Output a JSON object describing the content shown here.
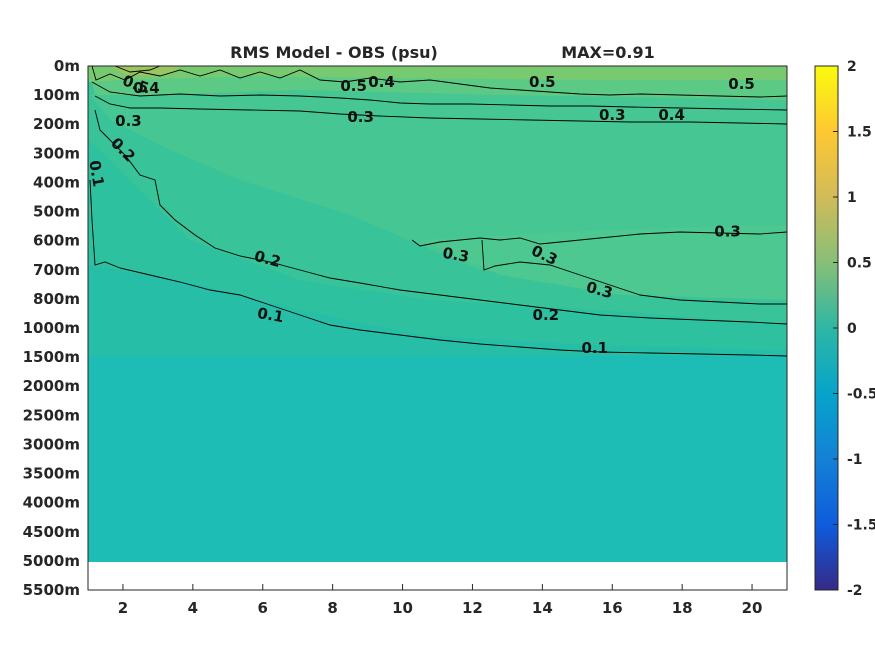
{
  "chart_data": {
    "type": "heatmap",
    "title": "RMS Model - OBS (psu)",
    "max_label": "MAX=0.91",
    "xlabel": "",
    "ylabel": "",
    "xlim": [
      1,
      21
    ],
    "x_ticks": [
      2,
      4,
      6,
      8,
      10,
      12,
      14,
      16,
      18,
      20
    ],
    "y_ticks": [
      "0m",
      "100m",
      "200m",
      "300m",
      "400m",
      "500m",
      "600m",
      "700m",
      "800m",
      "1000m",
      "1500m",
      "2000m",
      "2500m",
      "3000m",
      "3500m",
      "4000m",
      "4500m",
      "5000m",
      "5500m"
    ],
    "data_depth_limit": "5000m",
    "colorbar": {
      "colormap": "parula",
      "range": [
        -2,
        2
      ],
      "ticks": [
        "2",
        "1.5",
        "1",
        "0.5",
        "0",
        "-0.5",
        "-1",
        "-1.5",
        "-2"
      ]
    },
    "contour_levels": [
      0.1,
      0.2,
      0.3,
      0.4,
      0.5
    ],
    "contour_labels": [
      {
        "text": "0.5",
        "x": 2.2,
        "depth": "100m"
      },
      {
        "text": "0.4",
        "x": 2.5,
        "depth": "100m"
      },
      {
        "text": "0.3",
        "x": 2.1,
        "depth": "200m"
      },
      {
        "text": "0.5",
        "x": 8.6,
        "depth": "100m"
      },
      {
        "text": "0.4",
        "x": 9.4,
        "depth": "100m"
      },
      {
        "text": "0.3",
        "x": 8.8,
        "depth": "200m"
      },
      {
        "text": "0.5",
        "x": 14.0,
        "depth": "100m"
      },
      {
        "text": "0.4",
        "x": 17.7,
        "depth": "200m"
      },
      {
        "text": "0.5",
        "x": 19.7,
        "depth": "100m"
      },
      {
        "text": "0.3",
        "x": 16.0,
        "depth": "200m"
      },
      {
        "text": "0.2",
        "x": 1.9,
        "depth": "300m"
      },
      {
        "text": "0.1",
        "x": 1.1,
        "depth": "400m"
      },
      {
        "text": "0.3",
        "x": 11.5,
        "depth": "700m"
      },
      {
        "text": "0.3",
        "x": 14.0,
        "depth": "700m"
      },
      {
        "text": "0.3",
        "x": 19.3,
        "depth": "600m"
      },
      {
        "text": "0.3",
        "x": 15.6,
        "depth": "800m"
      },
      {
        "text": "0.2",
        "x": 6.1,
        "depth": "700m"
      },
      {
        "text": "0.2",
        "x": 14.1,
        "depth": "1000m"
      },
      {
        "text": "0.1",
        "x": 6.2,
        "depth": "1000m"
      },
      {
        "text": "0.1",
        "x": 15.5,
        "depth": "1500m"
      }
    ]
  }
}
